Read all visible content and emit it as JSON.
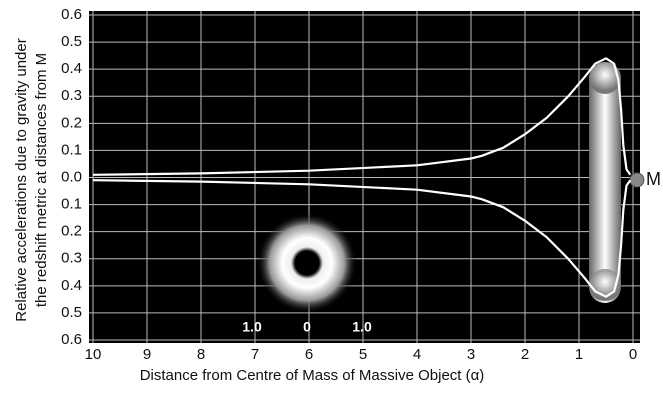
{
  "chart_data": {
    "type": "line",
    "xlabel": "Distance from Centre of Mass of Massive Object (α)",
    "ylabel": [
      "Relative accelerations due to gravity under",
      "the redshift metric at distances from M"
    ],
    "xlim": [
      10,
      0
    ],
    "xticks": [
      10,
      9,
      8,
      7,
      6,
      5,
      4,
      3,
      2,
      1,
      0
    ],
    "ylim": [
      -0.6,
      0.6
    ],
    "yticks": [
      0.6,
      0.5,
      0.4,
      0.3,
      0.2,
      0.1,
      {
        "value": 0,
        "label": "0.0"
      },
      {
        "value": -0.1,
        "label": "0.1"
      },
      {
        "value": -0.2,
        "label": "0.2"
      },
      {
        "value": -0.3,
        "label": "0.3"
      },
      {
        "value": -0.4,
        "label": "0.4"
      },
      {
        "value": -0.5,
        "label": "0.5"
      },
      {
        "value": -0.6,
        "label": "0.6"
      }
    ],
    "grid": true,
    "x": [
      10,
      8,
      6,
      4,
      3,
      2.8,
      2.4,
      2,
      1.6,
      1.2,
      0.9,
      0.7,
      0.5,
      0.35,
      0.27,
      0.22,
      0.18,
      0.12,
      0.05
    ],
    "series": [
      {
        "color": "#ffffff",
        "values": [
          0.01,
          0.015,
          0.025,
          0.045,
          0.07,
          0.08,
          0.11,
          0.16,
          0.22,
          0.3,
          0.37,
          0.42,
          0.44,
          0.42,
          0.36,
          0.25,
          0.12,
          0.03,
          0.01
        ]
      },
      {
        "color": "#ffffff",
        "values": [
          -0.01,
          -0.015,
          -0.025,
          -0.045,
          -0.07,
          -0.08,
          -0.11,
          -0.16,
          -0.22,
          -0.3,
          -0.37,
          -0.42,
          -0.44,
          -0.42,
          -0.36,
          -0.25,
          -0.12,
          -0.03,
          -0.01
        ]
      }
    ],
    "annotations": [
      "M",
      "1.0",
      "0",
      "1.0"
    ]
  }
}
